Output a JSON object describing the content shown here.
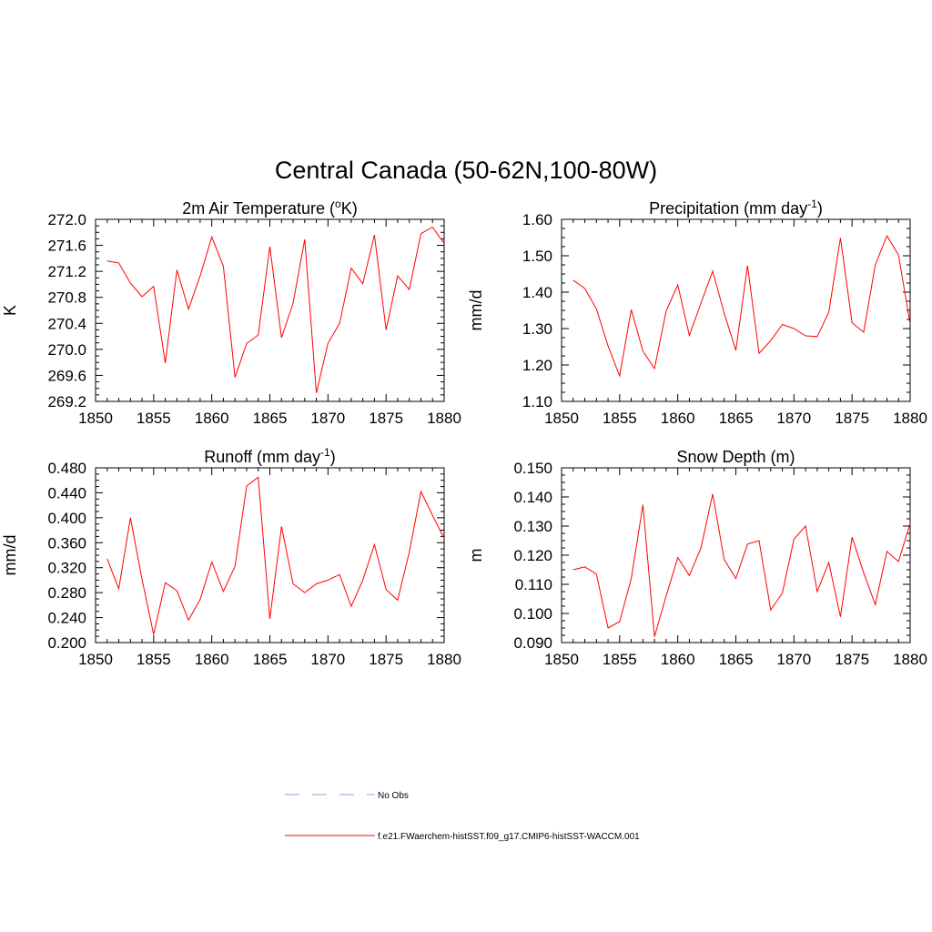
{
  "figure": {
    "title": "Central Canada (50-62N,100-80W)",
    "series_color": "#ff0000",
    "obs_color": "#9999ee"
  },
  "legend": {
    "items": [
      {
        "label": "No Obs",
        "style": "dashed",
        "color": "#9999ee"
      },
      {
        "label": "f.e21.FWaerchem-histSST.f09_g17.CMIP6-histSST-WACCM.001",
        "style": "solid",
        "color": "#ff0000"
      }
    ]
  },
  "chart_data": [
    {
      "type": "line",
      "title": "2m Air Temperature (",
      "title_sup": "o",
      "title_after": "K)",
      "ylabel": "K",
      "xlim": [
        1850,
        1880
      ],
      "ylim": [
        269.2,
        272.0
      ],
      "xticks": [
        1850,
        1855,
        1860,
        1865,
        1870,
        1875,
        1880
      ],
      "yticks": [
        "269.2",
        "269.6",
        "270.0",
        "270.4",
        "270.8",
        "271.2",
        "271.6",
        "272.0"
      ],
      "x": [
        1851,
        1852,
        1853,
        1854,
        1855,
        1856,
        1857,
        1858,
        1859,
        1860,
        1861,
        1862,
        1863,
        1864,
        1865,
        1866,
        1867,
        1868,
        1869,
        1870,
        1871,
        1872,
        1873,
        1874,
        1875,
        1876,
        1877,
        1878,
        1879,
        1880
      ],
      "series": [
        {
          "values": [
            271.36,
            271.33,
            271.02,
            270.81,
            270.97,
            269.79,
            271.22,
            270.62,
            271.13,
            271.73,
            271.28,
            269.57,
            270.09,
            270.22,
            271.58,
            270.18,
            270.71,
            271.69,
            269.33,
            270.09,
            270.4,
            271.25,
            271.01,
            271.76,
            270.3,
            271.13,
            270.92,
            271.78,
            271.88,
            271.63
          ]
        }
      ]
    },
    {
      "type": "line",
      "title": "Precipitation (mm day",
      "title_sup": "-1",
      "title_after": ")",
      "ylabel": "mm/d",
      "xlim": [
        1850,
        1880
      ],
      "ylim": [
        1.1,
        1.6
      ],
      "xticks": [
        1850,
        1855,
        1860,
        1865,
        1870,
        1875,
        1880
      ],
      "yticks": [
        "1.10",
        "1.20",
        "1.30",
        "1.40",
        "1.50",
        "1.60"
      ],
      "x": [
        1851,
        1852,
        1853,
        1854,
        1855,
        1856,
        1857,
        1858,
        1859,
        1860,
        1861,
        1862,
        1863,
        1864,
        1865,
        1866,
        1867,
        1868,
        1869,
        1870,
        1871,
        1872,
        1873,
        1874,
        1875,
        1876,
        1877,
        1878,
        1879,
        1880
      ],
      "series": [
        {
          "values": [
            1.433,
            1.41,
            1.354,
            1.252,
            1.17,
            1.352,
            1.238,
            1.19,
            1.348,
            1.42,
            1.281,
            1.37,
            1.458,
            1.342,
            1.24,
            1.473,
            1.232,
            1.267,
            1.311,
            1.3,
            1.28,
            1.278,
            1.345,
            1.549,
            1.316,
            1.29,
            1.475,
            1.555,
            1.502,
            1.313
          ]
        }
      ]
    },
    {
      "type": "line",
      "title": "Runoff (mm day",
      "title_sup": "-1",
      "title_after": ")",
      "ylabel": "mm/d",
      "xlim": [
        1850,
        1880
      ],
      "ylim": [
        0.2,
        0.48
      ],
      "xticks": [
        1850,
        1855,
        1860,
        1865,
        1870,
        1875,
        1880
      ],
      "yticks": [
        "0.200",
        "0.240",
        "0.280",
        "0.320",
        "0.360",
        "0.400",
        "0.440",
        "0.480"
      ],
      "x": [
        1851,
        1852,
        1853,
        1854,
        1855,
        1856,
        1857,
        1858,
        1859,
        1860,
        1861,
        1862,
        1863,
        1864,
        1865,
        1866,
        1867,
        1868,
        1869,
        1870,
        1871,
        1872,
        1873,
        1874,
        1875,
        1876,
        1877,
        1878,
        1879,
        1880
      ],
      "series": [
        {
          "values": [
            0.334,
            0.286,
            0.4,
            0.301,
            0.213,
            0.296,
            0.283,
            0.236,
            0.269,
            0.329,
            0.282,
            0.322,
            0.451,
            0.465,
            0.238,
            0.386,
            0.294,
            0.28,
            0.294,
            0.3,
            0.309,
            0.258,
            0.3,
            0.357,
            0.285,
            0.268,
            0.345,
            0.442,
            0.404,
            0.367
          ]
        }
      ]
    },
    {
      "type": "line",
      "title": "Snow Depth (m)",
      "title_sup": "",
      "title_after": "",
      "ylabel": "m",
      "xlim": [
        1850,
        1880
      ],
      "ylim": [
        0.09,
        0.15
      ],
      "xticks": [
        1850,
        1855,
        1860,
        1865,
        1870,
        1875,
        1880
      ],
      "yticks": [
        "0.090",
        "0.100",
        "0.110",
        "0.120",
        "0.130",
        "0.140",
        "0.150"
      ],
      "x": [
        1851,
        1852,
        1853,
        1854,
        1855,
        1856,
        1857,
        1858,
        1859,
        1860,
        1861,
        1862,
        1863,
        1864,
        1865,
        1866,
        1867,
        1868,
        1869,
        1870,
        1871,
        1872,
        1873,
        1874,
        1875,
        1876,
        1877,
        1878,
        1879,
        1880
      ],
      "series": [
        {
          "values": [
            0.115,
            0.116,
            0.1135,
            0.095,
            0.0972,
            0.112,
            0.1373,
            0.092,
            0.106,
            0.1192,
            0.113,
            0.1225,
            0.141,
            0.1185,
            0.112,
            0.1238,
            0.125,
            0.1012,
            0.107,
            0.1255,
            0.13,
            0.1075,
            0.1175,
            0.0988,
            0.1262,
            0.114,
            0.103,
            0.1213,
            0.1178,
            0.131
          ]
        }
      ]
    }
  ]
}
